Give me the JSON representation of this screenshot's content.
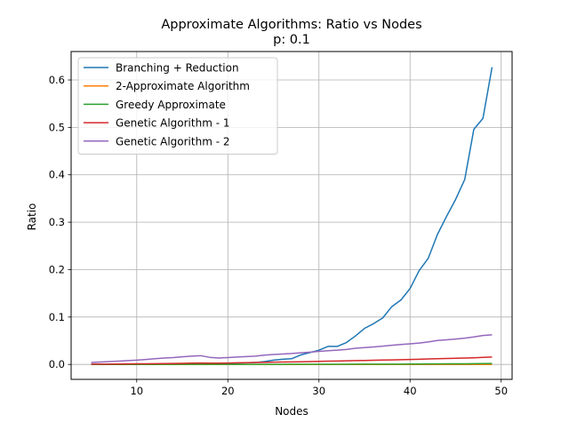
{
  "chart_data": {
    "type": "line",
    "title": "Approximate Algorithms: Ratio vs Nodes",
    "subtitle": "p: 0.1",
    "xlabel": "Nodes",
    "ylabel": "Ratio",
    "xlim": [
      2.8,
      51.2
    ],
    "ylim": [
      -0.0315,
      0.66
    ],
    "xticks": [
      10,
      20,
      30,
      40,
      50
    ],
    "yticks": [
      0.0,
      0.1,
      0.2,
      0.3,
      0.4,
      0.5,
      0.6
    ],
    "xtick_labels": [
      "10",
      "20",
      "30",
      "40",
      "50"
    ],
    "ytick_labels": [
      "0.0",
      "0.1",
      "0.2",
      "0.3",
      "0.4",
      "0.5",
      "0.6"
    ],
    "grid": true,
    "legend_position": "top-left",
    "x": [
      5,
      6,
      7,
      8,
      9,
      10,
      11,
      12,
      13,
      14,
      15,
      16,
      17,
      18,
      19,
      20,
      21,
      22,
      23,
      24,
      25,
      26,
      27,
      28,
      29,
      30,
      31,
      32,
      33,
      34,
      35,
      36,
      37,
      38,
      39,
      40,
      41,
      42,
      43,
      44,
      45,
      46,
      47,
      48,
      49
    ],
    "series": [
      {
        "name": "Branching + Reduction",
        "color": "#1f77b4",
        "values": [
          0.0002,
          0.0002,
          0.0003,
          0.0004,
          0.0005,
          0.0006,
          0.0007,
          0.0008,
          0.001,
          0.0012,
          0.0014,
          0.0016,
          0.0018,
          0.002,
          0.0022,
          0.0025,
          0.003,
          0.0035,
          0.004,
          0.006,
          0.009,
          0.011,
          0.012,
          0.02,
          0.025,
          0.03,
          0.038,
          0.038,
          0.046,
          0.06,
          0.076,
          0.086,
          0.098,
          0.122,
          0.136,
          0.16,
          0.198,
          0.224,
          0.274,
          0.312,
          0.348,
          0.39,
          0.496,
          0.519,
          0.627
        ]
      },
      {
        "name": "2-Approximate Algorithm",
        "color": "#ff7f0e",
        "values": [
          0.0,
          0.0,
          0.0,
          0.0,
          0.0,
          0.0,
          0.0,
          0.0,
          0.0,
          0.0,
          0.0,
          0.0,
          0.0,
          0.0,
          0.0,
          0.0,
          0.0,
          0.0,
          0.0,
          0.0,
          0.0,
          0.0,
          0.0,
          0.0,
          0.0,
          0.0,
          0.0,
          0.0,
          0.0,
          0.0,
          0.0,
          0.0,
          0.0,
          0.0,
          0.0,
          0.0,
          0.0,
          0.0,
          0.0,
          0.0,
          0.0,
          0.0,
          0.0,
          0.0,
          0.0
        ]
      },
      {
        "name": "Greedy Approximate",
        "color": "#2ca02c",
        "values": [
          0.0,
          0.0,
          0.0,
          0.0,
          0.0,
          0.0,
          0.0,
          0.0,
          0.0001,
          0.0001,
          0.0001,
          0.0001,
          0.0001,
          0.0001,
          0.0001,
          0.0001,
          0.0001,
          0.0002,
          0.0002,
          0.0002,
          0.0002,
          0.0002,
          0.0003,
          0.0003,
          0.0003,
          0.0003,
          0.0004,
          0.0004,
          0.0004,
          0.0005,
          0.0005,
          0.0006,
          0.0006,
          0.0007,
          0.0007,
          0.0008,
          0.0009,
          0.001,
          0.0011,
          0.0012,
          0.0013,
          0.0014,
          0.0016,
          0.0018,
          0.002
        ]
      },
      {
        "name": "Genetic Algorithm - 1",
        "color": "#d62728",
        "values": [
          0.0005,
          0.0006,
          0.0007,
          0.0008,
          0.001,
          0.0012,
          0.0014,
          0.0016,
          0.0018,
          0.002,
          0.0023,
          0.0026,
          0.003,
          0.0028,
          0.0027,
          0.003,
          0.0033,
          0.0036,
          0.004,
          0.0043,
          0.0047,
          0.005,
          0.0053,
          0.0056,
          0.006,
          0.0064,
          0.0068,
          0.0072,
          0.0076,
          0.008,
          0.0084,
          0.0088,
          0.0092,
          0.0096,
          0.01,
          0.0105,
          0.011,
          0.0115,
          0.012,
          0.0125,
          0.013,
          0.0135,
          0.014,
          0.0148,
          0.0155
        ]
      },
      {
        "name": "Genetic Algorithm - 2",
        "color": "#9467bd",
        "values": [
          0.004,
          0.005,
          0.006,
          0.007,
          0.008,
          0.009,
          0.0105,
          0.012,
          0.0135,
          0.0145,
          0.016,
          0.0175,
          0.0185,
          0.015,
          0.0135,
          0.0145,
          0.0155,
          0.0165,
          0.0175,
          0.0195,
          0.021,
          0.022,
          0.023,
          0.0245,
          0.026,
          0.0275,
          0.029,
          0.03,
          0.0315,
          0.034,
          0.0355,
          0.037,
          0.0385,
          0.0405,
          0.042,
          0.0435,
          0.045,
          0.0475,
          0.0505,
          0.052,
          0.0535,
          0.0555,
          0.058,
          0.061,
          0.0625
        ]
      }
    ]
  }
}
